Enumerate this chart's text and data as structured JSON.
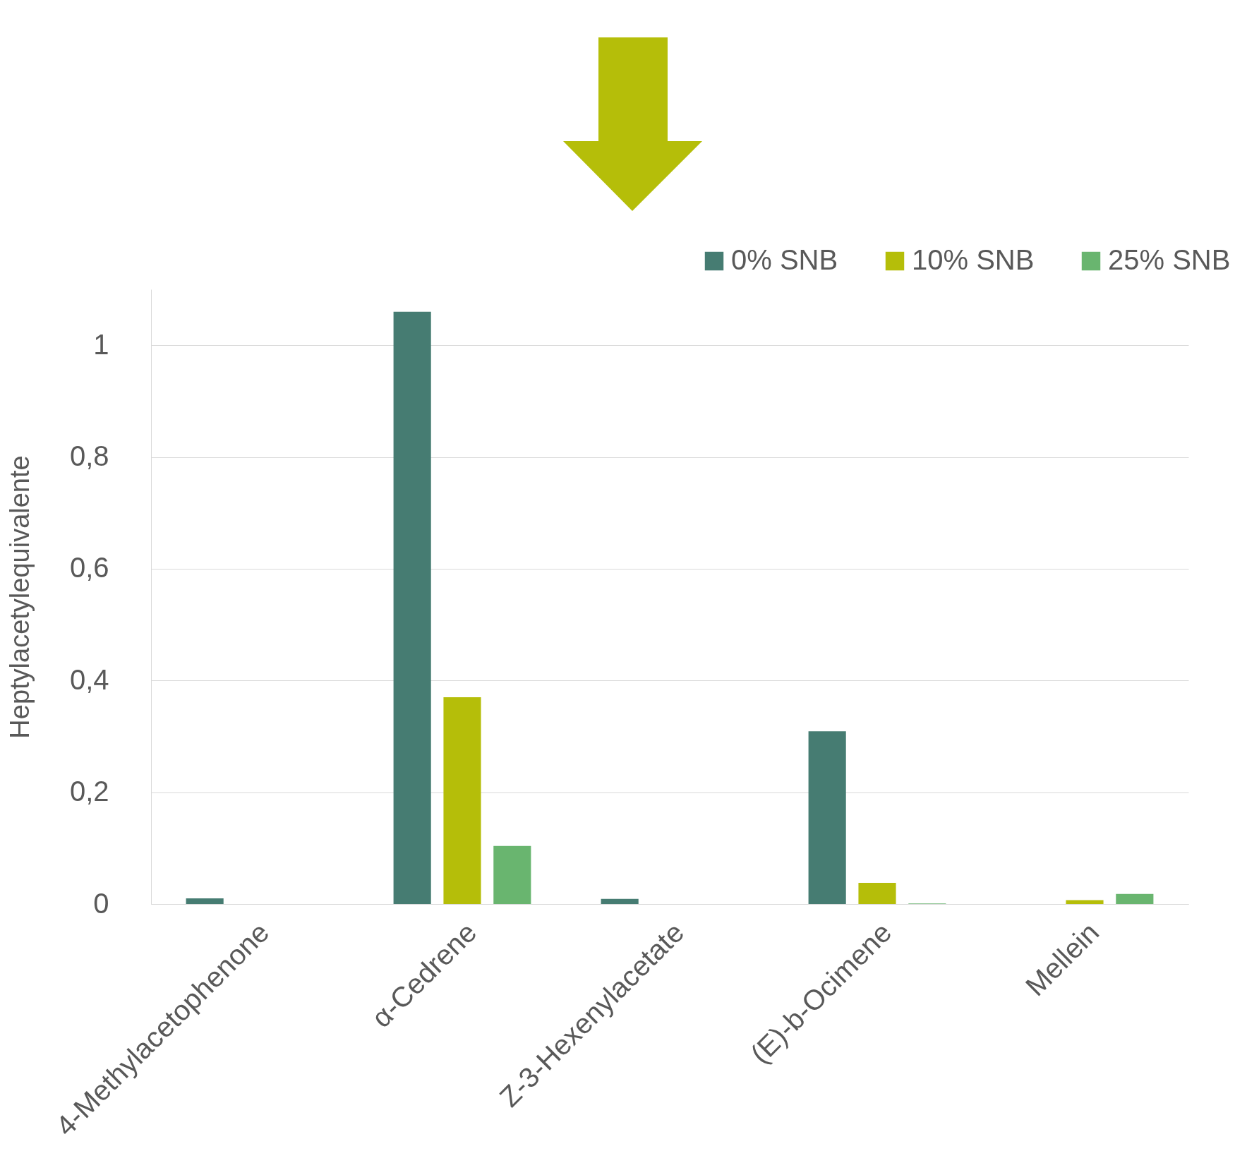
{
  "chart_data": {
    "type": "bar",
    "ylabel": "Heptylacetylequivalente",
    "categories": [
      "4-Methylacetophenone",
      "α-Cedrene",
      "Z-3-Hexenylacetate",
      "(E)-b-Ocimene",
      "Mellein"
    ],
    "series": [
      {
        "name": "0% SNB",
        "color": "#467c72",
        "values": [
          0.01,
          1.06,
          0.009,
          0.309,
          0
        ]
      },
      {
        "name": "10% SNB",
        "color": "#b5be09",
        "values": [
          0,
          0.37,
          0,
          0.038,
          0.007
        ]
      },
      {
        "name": "25% SNB",
        "color": "#69b56f",
        "values": [
          0,
          0.104,
          0,
          0.001,
          0.018
        ]
      }
    ],
    "ylim": [
      0,
      1.1
    ],
    "yticks": [
      0,
      {
        "value": 0.2,
        "label": "0,2"
      },
      {
        "value": 0.4,
        "label": "0,4"
      },
      {
        "value": 0.6,
        "label": "0,6"
      },
      {
        "value": 0.8,
        "label": "0,8"
      },
      1
    ],
    "grid": "y",
    "legend": "top right"
  }
}
